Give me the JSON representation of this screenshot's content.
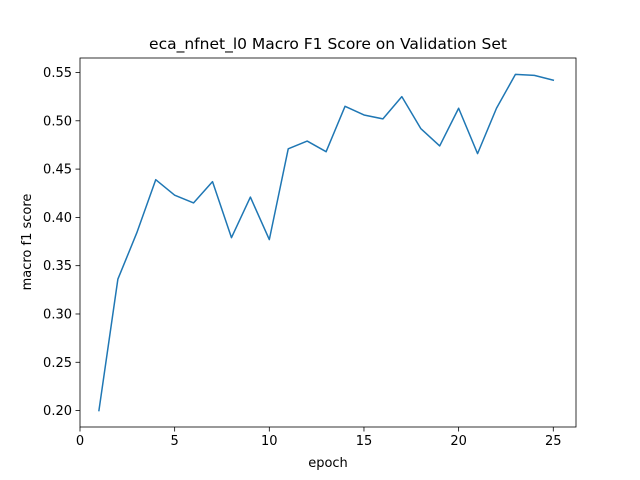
{
  "chart_data": {
    "type": "line",
    "title": "eca_nfnet_l0 Macro F1 Score on Validation Set",
    "xlabel": "epoch",
    "ylabel": "macro f1 score",
    "xlim": [
      0,
      26.2
    ],
    "ylim": [
      0.183,
      0.565
    ],
    "xticks": [
      0,
      5,
      10,
      15,
      20,
      25
    ],
    "xtick_labels": [
      "0",
      "5",
      "10",
      "15",
      "20",
      "25"
    ],
    "yticks": [
      0.2,
      0.25,
      0.3,
      0.35,
      0.4,
      0.45,
      0.5,
      0.55
    ],
    "ytick_labels": [
      "0.20",
      "0.25",
      "0.30",
      "0.35",
      "0.40",
      "0.45",
      "0.50",
      "0.55"
    ],
    "grid": false,
    "series": [
      {
        "name": "macro f1 score",
        "color": "#1f77b4",
        "x": [
          1,
          2,
          3,
          4,
          5,
          6,
          7,
          8,
          9,
          10,
          11,
          12,
          13,
          14,
          15,
          16,
          17,
          18,
          19,
          20,
          21,
          22,
          23,
          24,
          25
        ],
        "values": [
          0.2,
          0.336,
          0.384,
          0.439,
          0.423,
          0.415,
          0.437,
          0.379,
          0.421,
          0.377,
          0.471,
          0.479,
          0.468,
          0.515,
          0.506,
          0.502,
          0.525,
          0.492,
          0.474,
          0.513,
          0.466,
          0.513,
          0.548,
          0.547,
          0.542
        ]
      }
    ]
  }
}
